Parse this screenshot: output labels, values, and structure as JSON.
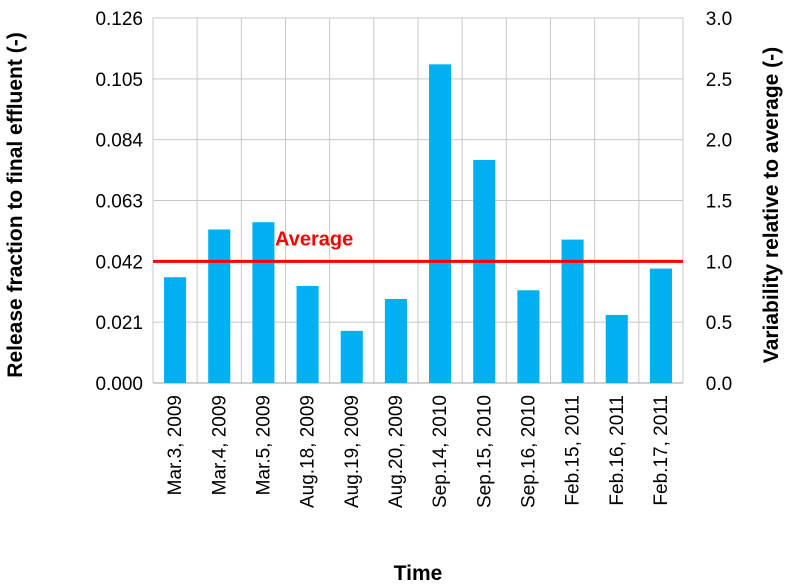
{
  "chart_data": {
    "type": "bar",
    "categories": [
      "Mar.3, 2009",
      "Mar.4, 2009",
      "Mar.5, 2009",
      "Aug.18, 2009",
      "Aug.19, 2009",
      "Aug.20, 2009",
      "Sep.14, 2010",
      "Sep.15, 2010",
      "Sep.16, 2010",
      "Feb.15, 2011",
      "Feb.16, 2011",
      "Feb.17, 2011"
    ],
    "values": [
      0.0365,
      0.053,
      0.0555,
      0.0335,
      0.018,
      0.029,
      0.11,
      0.077,
      0.032,
      0.0495,
      0.0235,
      0.0395
    ],
    "xlabel": "Time",
    "ylabel": "Release fraction to final effluent (-)",
    "y2label": "Variability relative to average (-)",
    "ylim": [
      0,
      0.126
    ],
    "y2lim": [
      0,
      3.0
    ],
    "yticks": [
      "0.000",
      "0.021",
      "0.042",
      "0.063",
      "0.084",
      "0.105",
      "0.126"
    ],
    "y2ticks": [
      "0.0",
      "0.5",
      "1.0",
      "1.5",
      "2.0",
      "2.5",
      "3.0"
    ],
    "average_line": {
      "value": 0.042,
      "label": "Average",
      "color": "#ff0000"
    },
    "bar_color": "#00b0f0",
    "grid": true,
    "legend": "none"
  }
}
